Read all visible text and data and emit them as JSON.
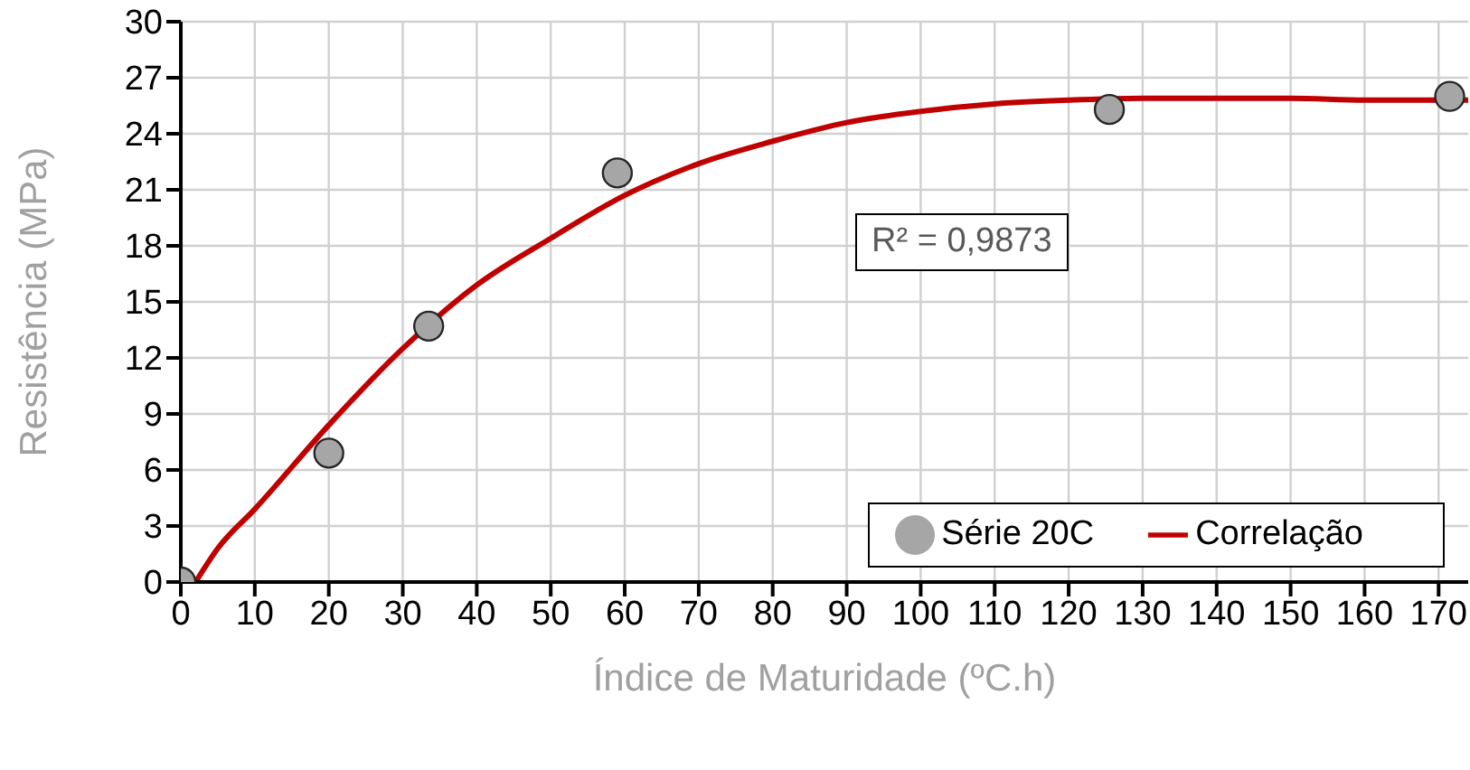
{
  "chart_data": {
    "type": "scatter",
    "xlabel": "Índice de Maturidade (ºC.h)",
    "ylabel": "Resistência (MPa)",
    "xlim": [
      0,
      174
    ],
    "xticks": [
      0,
      10,
      20,
      30,
      40,
      50,
      60,
      70,
      80,
      90,
      100,
      110,
      120,
      130,
      140,
      150,
      160,
      170
    ],
    "ylim": [
      0,
      30
    ],
    "yticks": [
      0,
      3,
      6,
      9,
      12,
      15,
      18,
      21,
      24,
      27,
      30
    ],
    "grid": true,
    "legend": "bottom right",
    "annotations": [
      "R² = 0,9873"
    ],
    "series": [
      {
        "name": "Série 20C",
        "marker": "circle",
        "color": "#a6a6a6",
        "x": [
          0,
          20,
          33.5,
          59,
          125.5,
          171.5
        ],
        "values": [
          0,
          6.9,
          13.7,
          21.9,
          25.3,
          26.0
        ]
      },
      {
        "name": "Correlação",
        "type": "line",
        "color": "#c00000",
        "x": [
          2,
          5,
          10,
          20,
          30,
          40,
          50,
          60,
          70,
          80,
          90,
          100,
          110,
          120,
          130,
          140,
          150,
          160,
          174
        ],
        "values": [
          0,
          1.8,
          3.9,
          8.4,
          12.5,
          15.9,
          18.4,
          20.7,
          22.4,
          23.6,
          24.6,
          25.2,
          25.6,
          25.8,
          25.9,
          25.9,
          25.9,
          25.8,
          25.8
        ]
      }
    ]
  }
}
